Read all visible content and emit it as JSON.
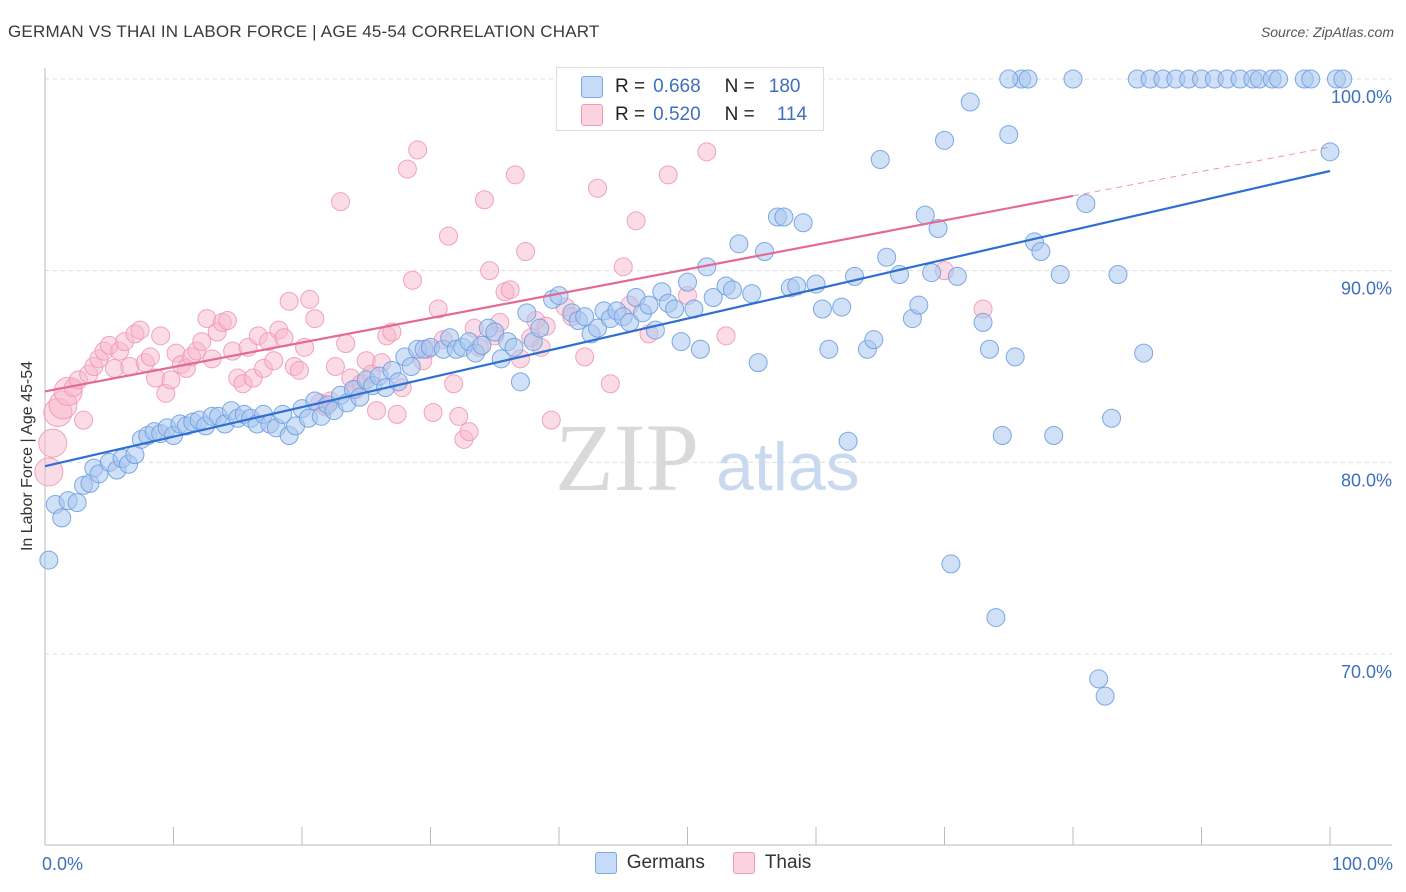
{
  "title": "GERMAN VS THAI IN LABOR FORCE | AGE 45-54 CORRELATION CHART",
  "source": "Source: ZipAtlas.com",
  "watermark": {
    "zip": "ZIP",
    "atlas": "atlas"
  },
  "legend_top": [
    {
      "r_label": "R =",
      "r_value": "0.668",
      "n_label": "N =",
      "n_value": "180",
      "color": "#a9c7f0"
    },
    {
      "r_label": "R =",
      "r_value": "0.520",
      "n_label": "N =",
      "n_value": "114",
      "color": "#f7b8cc"
    }
  ],
  "legend_bottom": [
    {
      "label": "Germans",
      "color": "#a9c7f0"
    },
    {
      "label": "Thais",
      "color": "#f7b8cc"
    }
  ],
  "chart_data": {
    "type": "scatter",
    "title": "GERMAN VS THAI IN LABOR FORCE | AGE 45-54 CORRELATION CHART",
    "xlabel": "",
    "ylabel": "In Labor Force | Age 45-54",
    "xlim": [
      0,
      100
    ],
    "ylim": [
      60,
      102.5
    ],
    "x_tick_labels": [
      "0.0%",
      "100.0%"
    ],
    "y_ticks": [
      70,
      80,
      90,
      100
    ],
    "y_tick_labels": [
      "70.0%",
      "80.0%",
      "90.0%",
      "100.0%"
    ],
    "grid": true,
    "legend_placement": "top-center and bottom",
    "series": [
      {
        "name": "Germans",
        "color": "#6fa0e0",
        "fill": "#a9c7f0",
        "line_color": "#2e6fd0",
        "trend": {
          "x": [
            0,
            100
          ],
          "y": [
            79.8,
            95.2
          ]
        },
        "points": [
          [
            0.3,
            74.9
          ],
          [
            0.8,
            77.8
          ],
          [
            1.3,
            77.1
          ],
          [
            1.8,
            78.0
          ],
          [
            2.5,
            77.9
          ],
          [
            3.0,
            78.8
          ],
          [
            3.5,
            78.9
          ],
          [
            3.8,
            79.7
          ],
          [
            4.2,
            79.4
          ],
          [
            5.0,
            80.0
          ],
          [
            5.6,
            79.6
          ],
          [
            6.0,
            80.2
          ],
          [
            6.5,
            79.9
          ],
          [
            7.0,
            80.4
          ],
          [
            7.5,
            81.2
          ],
          [
            8.0,
            81.4
          ],
          [
            8.5,
            81.6
          ],
          [
            9.0,
            81.5
          ],
          [
            9.5,
            81.8
          ],
          [
            10.0,
            81.4
          ],
          [
            10.5,
            82.0
          ],
          [
            11.0,
            81.9
          ],
          [
            11.5,
            82.1
          ],
          [
            12.0,
            82.2
          ],
          [
            12.5,
            81.9
          ],
          [
            13.0,
            82.4
          ],
          [
            13.5,
            82.4
          ],
          [
            14.0,
            82.0
          ],
          [
            14.5,
            82.7
          ],
          [
            15.0,
            82.3
          ],
          [
            15.5,
            82.5
          ],
          [
            16.0,
            82.3
          ],
          [
            16.5,
            82.0
          ],
          [
            17.0,
            82.5
          ],
          [
            17.5,
            82.0
          ],
          [
            18.0,
            81.8
          ],
          [
            18.5,
            82.5
          ],
          [
            19.0,
            81.4
          ],
          [
            19.5,
            81.9
          ],
          [
            20.0,
            82.8
          ],
          [
            20.5,
            82.3
          ],
          [
            21.0,
            83.2
          ],
          [
            21.5,
            82.4
          ],
          [
            22.0,
            83.0
          ],
          [
            22.5,
            82.7
          ],
          [
            23.0,
            83.5
          ],
          [
            23.5,
            83.1
          ],
          [
            24.0,
            83.8
          ],
          [
            24.5,
            83.4
          ],
          [
            25.0,
            84.3
          ],
          [
            25.5,
            84.0
          ],
          [
            26.0,
            84.5
          ],
          [
            26.5,
            83.9
          ],
          [
            27.0,
            84.8
          ],
          [
            27.5,
            84.2
          ],
          [
            28.0,
            85.5
          ],
          [
            28.5,
            85.0
          ],
          [
            29.0,
            85.9
          ],
          [
            29.5,
            85.9
          ],
          [
            30.0,
            86.0
          ],
          [
            31.0,
            85.9
          ],
          [
            31.5,
            86.5
          ],
          [
            32.0,
            85.9
          ],
          [
            32.5,
            86.0
          ],
          [
            33.0,
            86.3
          ],
          [
            33.5,
            85.7
          ],
          [
            34.0,
            86.1
          ],
          [
            34.5,
            87.0
          ],
          [
            35.0,
            86.8
          ],
          [
            35.5,
            85.4
          ],
          [
            36.0,
            86.3
          ],
          [
            36.5,
            86.0
          ],
          [
            37.0,
            84.2
          ],
          [
            37.5,
            87.8
          ],
          [
            38.0,
            86.3
          ],
          [
            38.5,
            87.0
          ],
          [
            39.5,
            88.5
          ],
          [
            40.0,
            88.7
          ],
          [
            41.0,
            87.8
          ],
          [
            41.5,
            87.4
          ],
          [
            42.0,
            87.6
          ],
          [
            42.5,
            86.7
          ],
          [
            43.0,
            87.0
          ],
          [
            43.5,
            87.9
          ],
          [
            44.0,
            87.5
          ],
          [
            44.5,
            87.9
          ],
          [
            45.0,
            87.6
          ],
          [
            45.5,
            87.3
          ],
          [
            46.0,
            88.6
          ],
          [
            46.5,
            87.8
          ],
          [
            47.0,
            88.2
          ],
          [
            47.5,
            86.9
          ],
          [
            48.0,
            88.9
          ],
          [
            48.5,
            88.3
          ],
          [
            49.0,
            88.0
          ],
          [
            49.5,
            86.3
          ],
          [
            50.0,
            89.4
          ],
          [
            50.5,
            88.0
          ],
          [
            51.0,
            85.9
          ],
          [
            51.5,
            90.2
          ],
          [
            52.0,
            88.6
          ],
          [
            53.0,
            89.2
          ],
          [
            53.5,
            89.0
          ],
          [
            54.0,
            91.4
          ],
          [
            55.0,
            88.8
          ],
          [
            55.5,
            85.2
          ],
          [
            56.0,
            91.0
          ],
          [
            57.0,
            92.8
          ],
          [
            57.5,
            92.8
          ],
          [
            58.0,
            89.1
          ],
          [
            58.5,
            89.2
          ],
          [
            59.0,
            92.5
          ],
          [
            60.0,
            89.3
          ],
          [
            60.5,
            88.0
          ],
          [
            61.0,
            85.9
          ],
          [
            62.0,
            88.1
          ],
          [
            62.5,
            81.1
          ],
          [
            63.0,
            89.7
          ],
          [
            64.0,
            85.9
          ],
          [
            64.5,
            86.4
          ],
          [
            65.0,
            95.8
          ],
          [
            65.5,
            90.7
          ],
          [
            66.5,
            89.8
          ],
          [
            67.5,
            87.5
          ],
          [
            68.0,
            88.2
          ],
          [
            68.5,
            92.9
          ],
          [
            69.0,
            89.9
          ],
          [
            69.5,
            92.2
          ],
          [
            70.0,
            96.8
          ],
          [
            70.5,
            74.7
          ],
          [
            71.0,
            89.7
          ],
          [
            72.0,
            98.8
          ],
          [
            73.0,
            87.3
          ],
          [
            73.5,
            85.9
          ],
          [
            74.0,
            71.9
          ],
          [
            74.5,
            81.4
          ],
          [
            75.0,
            97.1
          ],
          [
            75.5,
            85.5
          ],
          [
            76.0,
            100.0
          ],
          [
            77.0,
            91.5
          ],
          [
            77.5,
            91.0
          ],
          [
            78.5,
            81.4
          ],
          [
            79.0,
            89.8
          ],
          [
            80.0,
            100.0
          ],
          [
            81.0,
            93.5
          ],
          [
            82.0,
            68.7
          ],
          [
            82.5,
            67.8
          ],
          [
            83.0,
            82.3
          ],
          [
            83.5,
            89.8
          ],
          [
            85.0,
            100.0
          ],
          [
            85.5,
            85.7
          ],
          [
            86.0,
            100.0
          ],
          [
            87.0,
            100.0
          ],
          [
            88.0,
            100.0
          ],
          [
            89.0,
            100.0
          ],
          [
            90.0,
            100.0
          ],
          [
            91.0,
            100.0
          ],
          [
            92.0,
            100.0
          ],
          [
            93.0,
            100.0
          ],
          [
            94.0,
            100.0
          ],
          [
            94.5,
            100.0
          ],
          [
            95.5,
            100.0
          ],
          [
            96.0,
            100.0
          ],
          [
            100.0,
            96.2
          ],
          [
            100.5,
            100.0
          ],
          [
            101.0,
            100.0
          ],
          [
            98.0,
            100.0
          ],
          [
            98.5,
            100.0
          ],
          [
            75.0,
            100.0
          ],
          [
            76.5,
            100.0
          ]
        ]
      },
      {
        "name": "Thais",
        "color": "#f09ab5",
        "fill": "#f7b8cc",
        "line_color": "#e26a94",
        "trend": {
          "x": [
            0,
            80
          ],
          "y": [
            83.7,
            93.9
          ]
        },
        "points": [
          [
            0.3,
            79.5
          ],
          [
            0.6,
            81.0
          ],
          [
            1.0,
            82.6
          ],
          [
            1.4,
            83.0
          ],
          [
            1.8,
            83.7
          ],
          [
            2.2,
            83.9
          ],
          [
            2.6,
            84.3
          ],
          [
            3.0,
            82.2
          ],
          [
            3.4,
            84.6
          ],
          [
            3.8,
            85.0
          ],
          [
            4.2,
            85.4
          ],
          [
            4.6,
            85.8
          ],
          [
            5.0,
            86.1
          ],
          [
            5.4,
            84.9
          ],
          [
            5.8,
            85.8
          ],
          [
            6.2,
            86.3
          ],
          [
            6.6,
            85.0
          ],
          [
            7.0,
            86.7
          ],
          [
            7.4,
            86.9
          ],
          [
            7.8,
            85.2
          ],
          [
            8.2,
            85.5
          ],
          [
            8.6,
            84.4
          ],
          [
            9.0,
            86.6
          ],
          [
            9.4,
            83.6
          ],
          [
            9.8,
            84.3
          ],
          [
            10.2,
            85.7
          ],
          [
            10.6,
            85.1
          ],
          [
            11.0,
            84.9
          ],
          [
            11.4,
            85.5
          ],
          [
            11.8,
            85.8
          ],
          [
            12.2,
            86.3
          ],
          [
            12.6,
            87.5
          ],
          [
            13.0,
            85.4
          ],
          [
            13.4,
            86.8
          ],
          [
            13.8,
            87.3
          ],
          [
            14.2,
            87.4
          ],
          [
            14.6,
            85.8
          ],
          [
            15.0,
            84.4
          ],
          [
            15.4,
            84.1
          ],
          [
            15.8,
            86.0
          ],
          [
            16.2,
            84.4
          ],
          [
            16.6,
            86.6
          ],
          [
            17.0,
            84.9
          ],
          [
            17.4,
            86.3
          ],
          [
            17.8,
            85.3
          ],
          [
            18.2,
            86.9
          ],
          [
            18.6,
            86.5
          ],
          [
            19.0,
            88.4
          ],
          [
            19.4,
            85.0
          ],
          [
            19.8,
            84.8
          ],
          [
            20.2,
            86.0
          ],
          [
            20.6,
            88.5
          ],
          [
            21.0,
            87.5
          ],
          [
            21.4,
            83.1
          ],
          [
            21.8,
            82.9
          ],
          [
            22.2,
            83.2
          ],
          [
            22.6,
            85.0
          ],
          [
            23.0,
            93.6
          ],
          [
            23.4,
            86.2
          ],
          [
            23.8,
            84.4
          ],
          [
            24.2,
            83.8
          ],
          [
            24.6,
            84.1
          ],
          [
            25.0,
            85.3
          ],
          [
            25.4,
            84.6
          ],
          [
            25.8,
            82.7
          ],
          [
            26.2,
            85.2
          ],
          [
            26.6,
            86.6
          ],
          [
            27.0,
            86.8
          ],
          [
            27.4,
            82.5
          ],
          [
            27.8,
            83.9
          ],
          [
            28.2,
            95.3
          ],
          [
            28.6,
            89.5
          ],
          [
            29.0,
            96.3
          ],
          [
            29.4,
            85.3
          ],
          [
            29.8,
            85.9
          ],
          [
            30.2,
            82.6
          ],
          [
            30.6,
            88.0
          ],
          [
            31.0,
            86.4
          ],
          [
            31.4,
            91.8
          ],
          [
            31.8,
            84.1
          ],
          [
            32.2,
            82.4
          ],
          [
            32.6,
            81.2
          ],
          [
            33.0,
            81.6
          ],
          [
            33.4,
            87.0
          ],
          [
            33.8,
            86.0
          ],
          [
            34.2,
            93.7
          ],
          [
            34.6,
            90.0
          ],
          [
            35.0,
            86.6
          ],
          [
            35.4,
            87.3
          ],
          [
            35.8,
            88.9
          ],
          [
            36.2,
            89.0
          ],
          [
            36.6,
            95.0
          ],
          [
            37.0,
            85.4
          ],
          [
            37.4,
            91.0
          ],
          [
            37.8,
            86.5
          ],
          [
            38.2,
            87.4
          ],
          [
            38.6,
            86.0
          ],
          [
            39.0,
            87.1
          ],
          [
            39.4,
            82.2
          ],
          [
            40.5,
            88.1
          ],
          [
            41.0,
            87.6
          ],
          [
            43.0,
            94.3
          ],
          [
            44.0,
            84.1
          ],
          [
            45.0,
            90.2
          ],
          [
            45.5,
            88.2
          ],
          [
            46.0,
            92.6
          ],
          [
            47.0,
            86.7
          ],
          [
            48.5,
            95.0
          ],
          [
            50.0,
            88.7
          ],
          [
            51.5,
            96.2
          ],
          [
            53.0,
            86.6
          ],
          [
            70.0,
            90.0
          ],
          [
            73.0,
            88.0
          ],
          [
            42.0,
            85.5
          ]
        ]
      }
    ]
  }
}
